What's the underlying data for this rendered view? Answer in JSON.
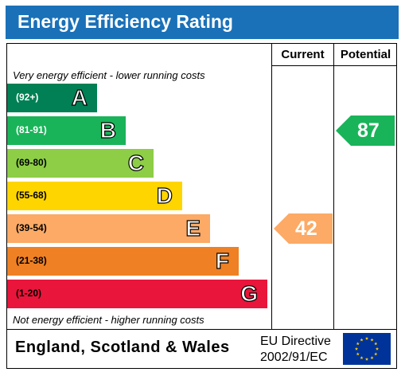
{
  "title": "Energy Efficiency Rating",
  "columns": {
    "current": "Current",
    "potential": "Potential"
  },
  "notes": {
    "top": "Very energy efficient - lower running costs",
    "bottom": "Not energy efficient - higher running costs"
  },
  "footer": {
    "region": "England, Scotland & Wales",
    "directive_line1": "EU Directive",
    "directive_line2": "2002/91/EC"
  },
  "chart_data": {
    "type": "bar",
    "categories": [
      "A",
      "B",
      "C",
      "D",
      "E",
      "F",
      "G"
    ],
    "ranges": [
      "(92+)",
      "(81-91)",
      "(69-80)",
      "(55-68)",
      "(39-54)",
      "(21-38)",
      "(1-20)"
    ],
    "band_colors": [
      "#008054",
      "#19b459",
      "#8dce46",
      "#ffd500",
      "#fcaa65",
      "#ef8023",
      "#e9153b"
    ],
    "range_text_colors": [
      "#ffffff",
      "#ffffff",
      "#000000",
      "#000000",
      "#000000",
      "#000000",
      "#000000"
    ],
    "current": {
      "value": 42,
      "band": "E",
      "color": "#fcaa65"
    },
    "potential": {
      "value": 87,
      "band": "B",
      "color": "#19b459"
    }
  }
}
